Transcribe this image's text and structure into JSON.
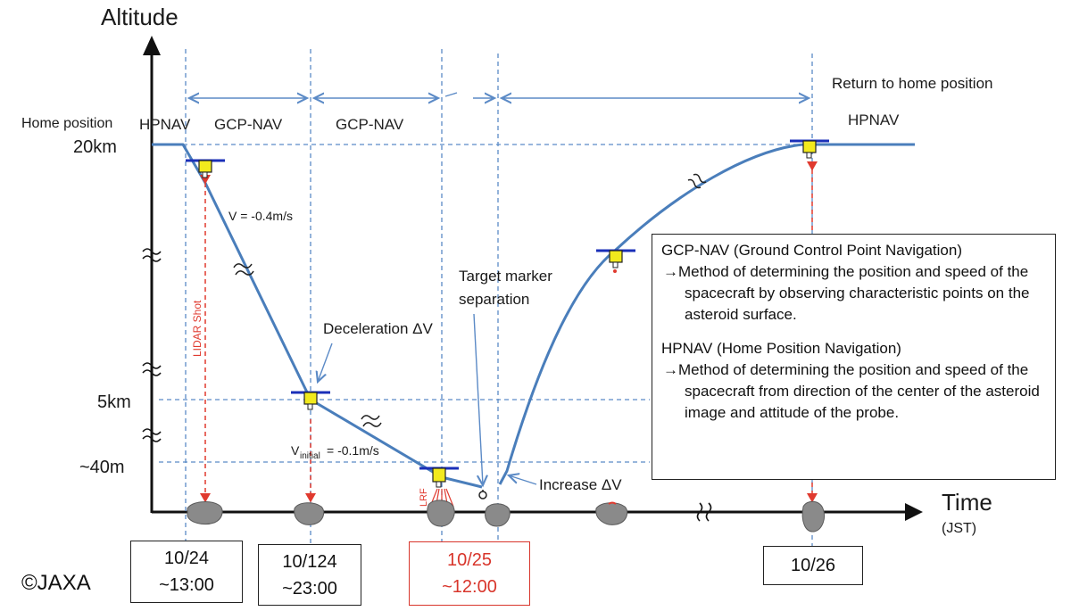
{
  "axes": {
    "y_title": "Altitude",
    "x_title": "Time",
    "x_unit": "(JST)"
  },
  "y_levels": {
    "home": "Home position",
    "km20": "20km",
    "km5": "5km",
    "m40": "~40m"
  },
  "phases": {
    "hpnav_left": "HPNAV",
    "gcp1": "GCP-NAV",
    "gcp2": "GCP-NAV",
    "hpnav_right": "HPNAV",
    "return_home": "Return to home position"
  },
  "annotations": {
    "velocity1": "V = -0.4m/s",
    "deceleration": "Deceleration ΔV",
    "v_initial_prefix": "V",
    "v_initial_sub": "initial",
    "v_initial_suffix": " = -0.1m/s",
    "target_marker_line1": "Target marker",
    "target_marker_line2": "separation",
    "increase": "Increase ΔV",
    "lidar": "LIDAR Shot",
    "lrf": "LRF"
  },
  "notes": {
    "gcp_head": "GCP-NAV (Ground Control Point Navigation)",
    "gcp_body": "→Method of determining the position and speed of the spacecraft by observing characteristic points on the asteroid surface.",
    "hp_head": "HPNAV (Home Position Navigation)",
    "hp_body": "→Method of determining the position and speed of the spacecraft from direction of the center of the asteroid image and attitude of the probe."
  },
  "dates": {
    "d1_line1": "10/24",
    "d1_line2": "~13:00",
    "d2_line1": "10/124",
    "d2_line2": "~23:00",
    "d3_line1": "10/25",
    "d3_line2": "~12:00",
    "d4_line1": "10/26"
  },
  "copyright": "©JAXA",
  "colors": {
    "trajectory": "#4a7ebb",
    "guide": "#5b8ac6",
    "lidar": "#e03a2f",
    "date_highlight": "#d8352b",
    "spacecraft": "#f2ea1d",
    "solar_panel": "#1a2fb8",
    "asteroid": "#8a8a8a"
  }
}
